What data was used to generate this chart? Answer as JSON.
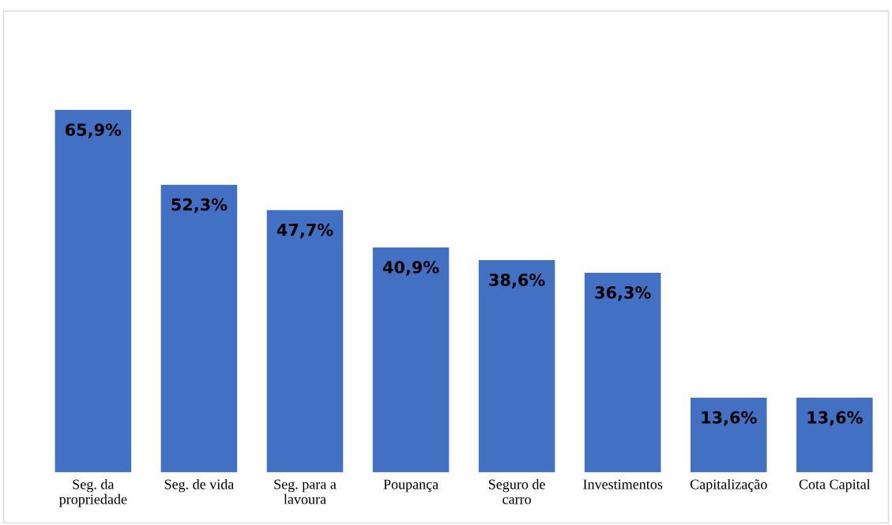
{
  "chart_data": {
    "type": "bar",
    "categories": [
      "Seg. da\npropriedade",
      "Seg. de vida",
      "Seg. para a\nlavoura",
      "Poupança",
      "Seguro de\ncarro",
      "Investimentos",
      "Capitalização",
      "Cota Capital"
    ],
    "values": [
      65.9,
      52.3,
      47.7,
      40.9,
      38.6,
      36.3,
      13.6,
      13.6
    ],
    "value_labels": [
      "65,9%",
      "52,3%",
      "47,7%",
      "40,9%",
      "38,6%",
      "36,3%",
      "13,6%",
      "13,6%"
    ],
    "color": "#4270c2",
    "grid": false,
    "tick_labels": "x"
  }
}
